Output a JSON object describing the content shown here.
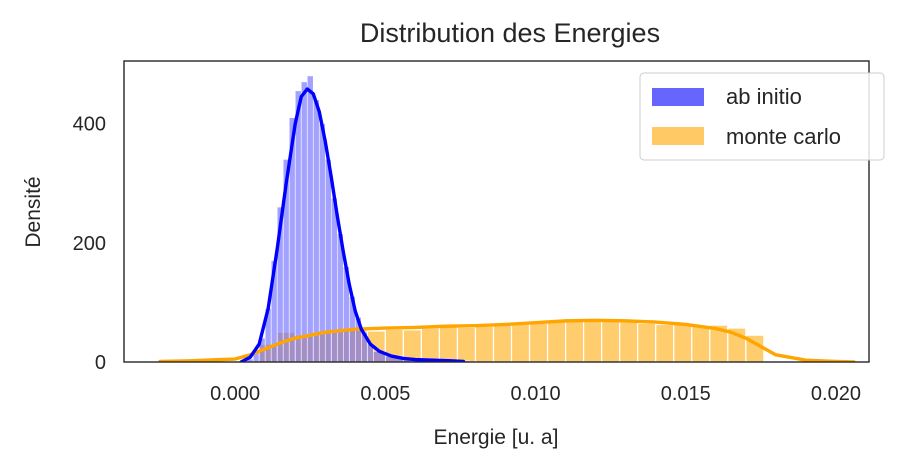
{
  "chart_data": {
    "type": "histogram",
    "title": "Distribution des Energies",
    "xlabel": "Energie [u. a]",
    "ylabel": "Densité",
    "xlim": [
      -0.0037,
      0.0211
    ],
    "ylim": [
      0,
      505
    ],
    "xticks": [
      {
        "value": 0.0,
        "label": "0.000"
      },
      {
        "value": 0.005,
        "label": "0.005"
      },
      {
        "value": 0.01,
        "label": "0.010"
      },
      {
        "value": 0.015,
        "label": "0.015"
      },
      {
        "value": 0.02,
        "label": "0.020"
      }
    ],
    "yticks": [
      {
        "value": 0,
        "label": "0"
      },
      {
        "value": 200,
        "label": "200"
      },
      {
        "value": 400,
        "label": "400"
      }
    ],
    "grid": false,
    "legend_position": "top-right",
    "series": [
      {
        "name": "ab initio",
        "color": "#0000ff",
        "fill_color": "#6666ff",
        "kde": [
          [
            0.0002,
            0
          ],
          [
            0.0005,
            8
          ],
          [
            0.0008,
            30
          ],
          [
            0.0011,
            90
          ],
          [
            0.0014,
            190
          ],
          [
            0.0017,
            300
          ],
          [
            0.002,
            400
          ],
          [
            0.0022,
            445
          ],
          [
            0.0024,
            458
          ],
          [
            0.0026,
            450
          ],
          [
            0.0028,
            420
          ],
          [
            0.003,
            370
          ],
          [
            0.0032,
            310
          ],
          [
            0.0034,
            245
          ],
          [
            0.0036,
            185
          ],
          [
            0.0038,
            130
          ],
          [
            0.004,
            85
          ],
          [
            0.0042,
            55
          ],
          [
            0.0045,
            30
          ],
          [
            0.0048,
            18
          ],
          [
            0.0052,
            10
          ],
          [
            0.0056,
            6
          ],
          [
            0.006,
            4
          ],
          [
            0.0066,
            3
          ],
          [
            0.0072,
            2
          ],
          [
            0.0076,
            1
          ]
        ],
        "bins": [
          [
            0.0004,
            0.0006,
            5
          ],
          [
            0.0006,
            0.0008,
            15
          ],
          [
            0.0008,
            0.001,
            40
          ],
          [
            0.001,
            0.0012,
            90
          ],
          [
            0.0012,
            0.0014,
            170
          ],
          [
            0.0014,
            0.0016,
            260
          ],
          [
            0.0016,
            0.0018,
            340
          ],
          [
            0.0018,
            0.002,
            410
          ],
          [
            0.002,
            0.0022,
            455
          ],
          [
            0.0022,
            0.0024,
            470
          ],
          [
            0.0024,
            0.0026,
            480
          ],
          [
            0.0026,
            0.0028,
            440
          ],
          [
            0.0028,
            0.003,
            400
          ],
          [
            0.003,
            0.0032,
            340
          ],
          [
            0.0032,
            0.0034,
            275
          ],
          [
            0.0034,
            0.0036,
            215
          ],
          [
            0.0036,
            0.0038,
            160
          ],
          [
            0.0038,
            0.004,
            110
          ],
          [
            0.004,
            0.0042,
            75
          ],
          [
            0.0042,
            0.0044,
            50
          ],
          [
            0.0044,
            0.0046,
            30
          ],
          [
            0.0046,
            0.005,
            18
          ],
          [
            0.005,
            0.0056,
            10
          ],
          [
            0.0056,
            0.0062,
            5
          ],
          [
            0.0062,
            0.007,
            3
          ],
          [
            0.007,
            0.0078,
            2
          ]
        ]
      },
      {
        "name": "monte carlo",
        "color": "#ffa500",
        "fill_color": "#ffc966",
        "kde": [
          [
            -0.0025,
            1
          ],
          [
            -0.0015,
            2
          ],
          [
            -0.0005,
            4
          ],
          [
            0.0,
            5
          ],
          [
            0.0005,
            12
          ],
          [
            0.001,
            22
          ],
          [
            0.0015,
            32
          ],
          [
            0.002,
            40
          ],
          [
            0.003,
            50
          ],
          [
            0.004,
            55
          ],
          [
            0.005,
            57
          ],
          [
            0.006,
            58
          ],
          [
            0.007,
            60
          ],
          [
            0.008,
            61
          ],
          [
            0.009,
            63
          ],
          [
            0.01,
            66
          ],
          [
            0.011,
            69
          ],
          [
            0.012,
            70
          ],
          [
            0.013,
            69
          ],
          [
            0.014,
            67
          ],
          [
            0.015,
            63
          ],
          [
            0.016,
            56
          ],
          [
            0.0165,
            50
          ],
          [
            0.017,
            40
          ],
          [
            0.0175,
            26
          ],
          [
            0.018,
            12
          ],
          [
            0.019,
            3
          ],
          [
            0.02,
            1
          ],
          [
            0.0206,
            0
          ]
        ],
        "bins": [
          [
            0.0008,
            0.0014,
            30
          ],
          [
            0.0014,
            0.002,
            50
          ],
          [
            0.002,
            0.0026,
            45
          ],
          [
            0.0026,
            0.0032,
            50
          ],
          [
            0.0032,
            0.0038,
            55
          ],
          [
            0.0038,
            0.0044,
            57
          ],
          [
            0.0044,
            0.005,
            52
          ],
          [
            0.005,
            0.0056,
            55
          ],
          [
            0.0056,
            0.0062,
            54
          ],
          [
            0.0062,
            0.0068,
            57
          ],
          [
            0.0068,
            0.0074,
            60
          ],
          [
            0.0074,
            0.008,
            58
          ],
          [
            0.008,
            0.0086,
            60
          ],
          [
            0.0086,
            0.0092,
            62
          ],
          [
            0.0092,
            0.0098,
            63
          ],
          [
            0.0098,
            0.0104,
            65
          ],
          [
            0.0104,
            0.011,
            68
          ],
          [
            0.011,
            0.0116,
            70
          ],
          [
            0.0116,
            0.0122,
            70
          ],
          [
            0.0122,
            0.0128,
            70
          ],
          [
            0.0128,
            0.0134,
            67
          ],
          [
            0.0134,
            0.014,
            65
          ],
          [
            0.014,
            0.0146,
            63
          ],
          [
            0.0146,
            0.0152,
            65
          ],
          [
            0.0152,
            0.0158,
            60
          ],
          [
            0.0158,
            0.0164,
            62
          ],
          [
            0.0164,
            0.017,
            57
          ],
          [
            0.017,
            0.0176,
            45
          ]
        ]
      }
    ]
  }
}
